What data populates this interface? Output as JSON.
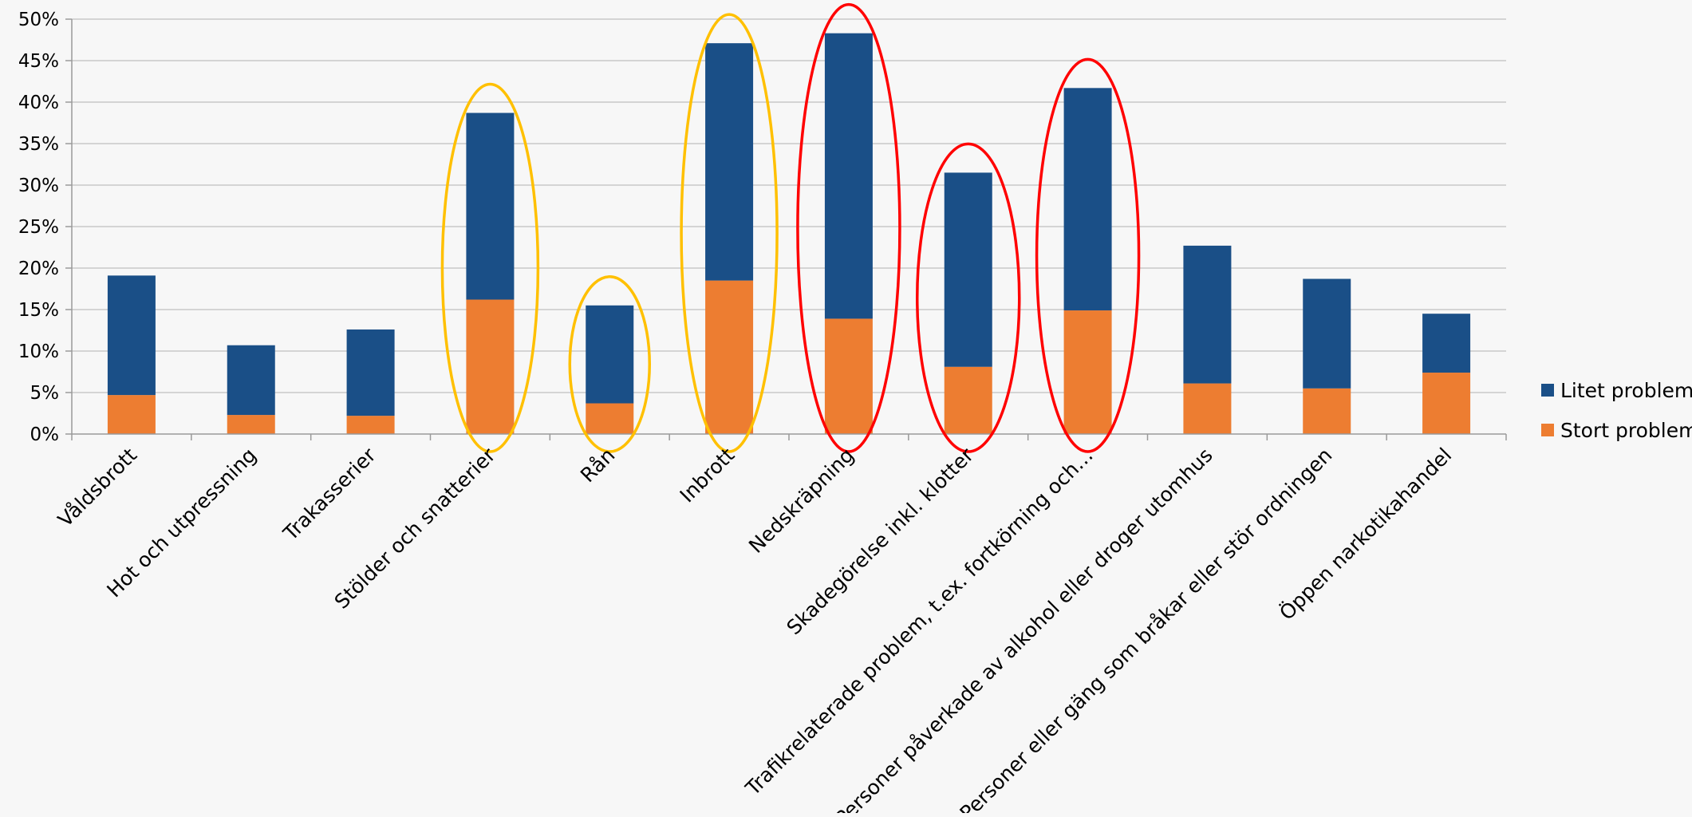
{
  "chart_data": {
    "type": "bar",
    "stacked": true,
    "categories": [
      "Våldsbrott",
      "Hot och utpressning",
      "Trakasserier",
      "Stölder och snatterier",
      "Rån",
      "Inbrott",
      "Nedskräpning",
      "Skadegörelse inkl. klotter",
      "Trafikrelaterade problem, t.ex. fortkörning och…",
      "Personer påverkade av alkohol eller droger utomhus",
      "Personer eller gäng som bråkar eller stör ordningen",
      "Öppen narkotikahandel"
    ],
    "series": [
      {
        "name": "Stort problem",
        "color": "#ed7d31",
        "values": [
          0.047,
          0.023,
          0.022,
          0.162,
          0.037,
          0.185,
          0.139,
          0.081,
          0.149,
          0.061,
          0.055,
          0.074
        ]
      },
      {
        "name": "Litet problem",
        "color": "#1a4f87",
        "values": [
          0.144,
          0.084,
          0.104,
          0.225,
          0.118,
          0.286,
          0.344,
          0.234,
          0.268,
          0.166,
          0.132,
          0.071
        ]
      }
    ],
    "ylim": [
      0,
      0.5
    ],
    "yticks": [
      "0%",
      "5%",
      "10%",
      "15%",
      "20%",
      "25%",
      "30%",
      "35%",
      "40%",
      "45%",
      "50%"
    ],
    "grid": true,
    "legend_position": "right",
    "annotations": [
      {
        "type": "ellipse",
        "color": "#ffc000",
        "categories": [
          "Stölder och snatterier",
          "Rån",
          "Inbrott"
        ]
      },
      {
        "type": "ellipse",
        "color": "#ff0000",
        "categories": [
          "Nedskräpning",
          "Skadegörelse inkl. klotter",
          "Trafikrelaterade problem, t.ex. fortkörning och…"
        ]
      }
    ],
    "title": "",
    "xlabel": "",
    "ylabel": ""
  }
}
